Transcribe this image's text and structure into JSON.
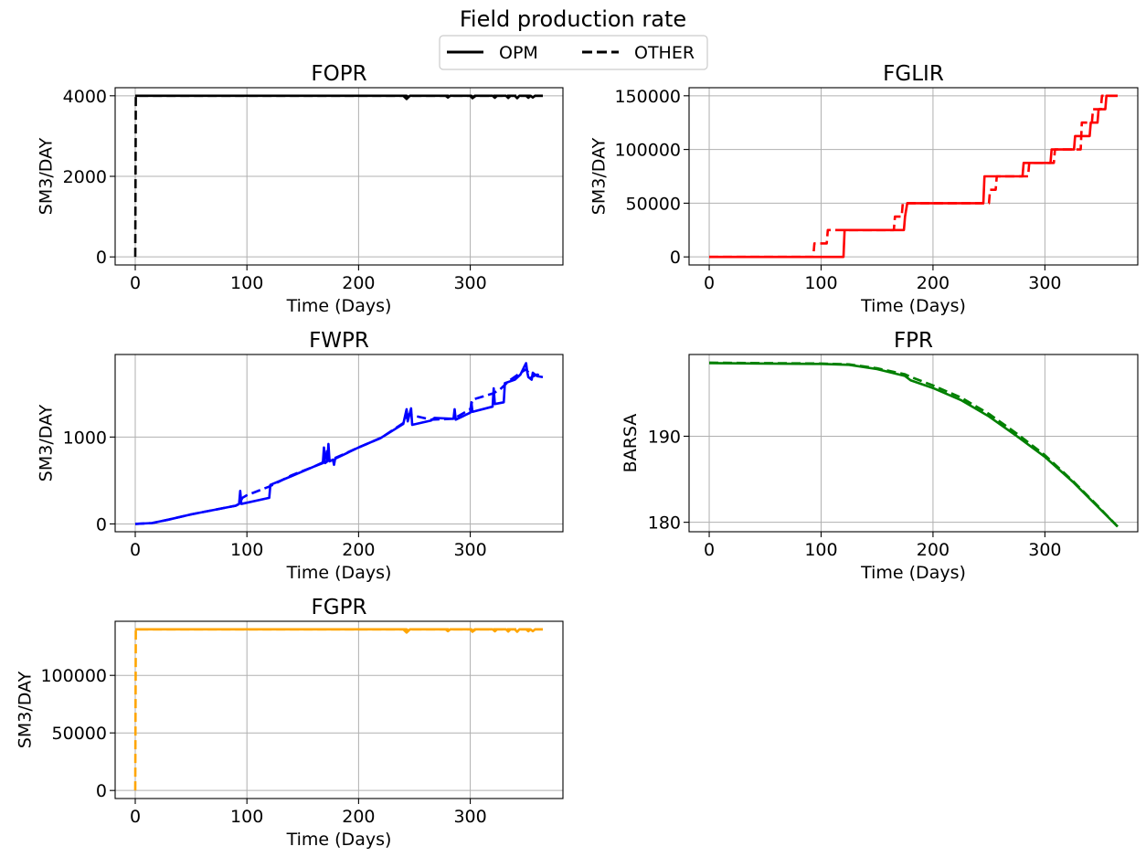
{
  "figure": {
    "title": "Field production rate",
    "legend": {
      "placement": "top-center",
      "entries": [
        {
          "label": "OPM",
          "style": "solid"
        },
        {
          "label": "OTHER",
          "style": "dashed"
        }
      ]
    }
  },
  "chart_data": [
    {
      "type": "line",
      "title": "FOPR",
      "xlabel": "Time (Days)",
      "ylabel": "SM3/DAY",
      "xlim": [
        -18,
        383
      ],
      "ylim": [
        -200,
        4200
      ],
      "xticks": [
        0,
        100,
        200,
        300
      ],
      "xtick_labels": [
        "0",
        "100",
        "200",
        "300"
      ],
      "yticks": [
        0,
        2000,
        4000
      ],
      "ytick_labels": [
        "0",
        "2000",
        "4000"
      ],
      "grid": true,
      "color": "#000000",
      "series": [
        {
          "name": "OPM",
          "style": "solid",
          "points": [
            [
              0,
              4000
            ],
            [
              240,
              4000
            ],
            [
              243,
              3920
            ],
            [
              246,
              4000
            ],
            [
              278,
              4000
            ],
            [
              280,
              3955
            ],
            [
              282,
              4000
            ],
            [
              300,
              4000
            ],
            [
              302,
              3940
            ],
            [
              304,
              4000
            ],
            [
              320,
              4000
            ],
            [
              322,
              3950
            ],
            [
              324,
              4000
            ],
            [
              332,
              4000
            ],
            [
              334,
              3945
            ],
            [
              336,
              4000
            ],
            [
              340,
              4000
            ],
            [
              342,
              3940
            ],
            [
              344,
              4000
            ],
            [
              350,
              4000
            ],
            [
              352,
              3950
            ],
            [
              354,
              4000
            ],
            [
              356,
              3955
            ],
            [
              358,
              4000
            ],
            [
              365,
              4000
            ]
          ]
        },
        {
          "name": "OTHER",
          "style": "dashed",
          "points": [
            [
              0,
              0
            ],
            [
              0.5,
              4000
            ],
            [
              243,
              4000
            ],
            [
              245,
              3960
            ],
            [
              247,
              4000
            ],
            [
              301,
              4000
            ],
            [
              303,
              3960
            ],
            [
              305,
              4000
            ],
            [
              365,
              4000
            ]
          ]
        }
      ]
    },
    {
      "type": "line",
      "title": "FGLIR",
      "xlabel": "Time (Days)",
      "ylabel": "SM3/DAY",
      "xlim": [
        -18,
        383
      ],
      "ylim": [
        -7500,
        157500
      ],
      "xticks": [
        0,
        100,
        200,
        300
      ],
      "xtick_labels": [
        "0",
        "100",
        "200",
        "300"
      ],
      "yticks": [
        0,
        50000,
        100000,
        150000
      ],
      "ytick_labels": [
        "0",
        "50000",
        "100000",
        "150000"
      ],
      "grid": true,
      "color": "#ff0000",
      "series": [
        {
          "name": "OPM",
          "style": "solid",
          "points": [
            [
              0,
              0
            ],
            [
              120,
              0
            ],
            [
              121,
              25000
            ],
            [
              174,
              25000
            ],
            [
              175,
              37500
            ],
            [
              177,
              50000
            ],
            [
              245,
              50000
            ],
            [
              246,
              75000
            ],
            [
              280,
              75000
            ],
            [
              281,
              87500
            ],
            [
              305,
              87500
            ],
            [
              306,
              100000
            ],
            [
              326,
              100000
            ],
            [
              327,
              112500
            ],
            [
              340,
              112500
            ],
            [
              341,
              125000
            ],
            [
              347,
              125000
            ],
            [
              348,
              137500
            ],
            [
              354,
              137500
            ],
            [
              355,
              150000
            ],
            [
              365,
              150000
            ]
          ]
        },
        {
          "name": "OTHER",
          "style": "dashed",
          "points": [
            [
              0,
              0
            ],
            [
              93,
              0
            ],
            [
              94,
              12500
            ],
            [
              105,
              12500
            ],
            [
              106,
              25000
            ],
            [
              165,
              25000
            ],
            [
              166,
              37500
            ],
            [
              172,
              37500
            ],
            [
              173,
              50000
            ],
            [
              250,
              50000
            ],
            [
              251,
              62500
            ],
            [
              256,
              62500
            ],
            [
              257,
              75000
            ],
            [
              285,
              75000
            ],
            [
              286,
              87500
            ],
            [
              308,
              87500
            ],
            [
              309,
              100000
            ],
            [
              332,
              100000
            ],
            [
              333,
              125000
            ],
            [
              342,
              125000
            ],
            [
              343,
              137500
            ],
            [
              350,
              137500
            ],
            [
              351,
              150000
            ],
            [
              365,
              150000
            ]
          ]
        }
      ]
    },
    {
      "type": "line",
      "title": "FWPR",
      "xlabel": "Time (Days)",
      "ylabel": "SM3/DAY",
      "xlim": [
        -18,
        383
      ],
      "ylim": [
        -90,
        1950
      ],
      "xticks": [
        0,
        100,
        200,
        300
      ],
      "xtick_labels": [
        "0",
        "100",
        "200",
        "300"
      ],
      "yticks": [
        0,
        1000
      ],
      "ytick_labels": [
        "0",
        "1000"
      ],
      "grid": true,
      "color": "#0000ff",
      "series": [
        {
          "name": "OPM",
          "style": "solid",
          "points": [
            [
              0,
              0
            ],
            [
              15,
              10
            ],
            [
              30,
              50
            ],
            [
              50,
              110
            ],
            [
              70,
              160
            ],
            [
              90,
              210
            ],
            [
              93,
              230
            ],
            [
              94,
              380
            ],
            [
              95,
              230
            ],
            [
              120,
              300
            ],
            [
              121,
              450
            ],
            [
              140,
              550
            ],
            [
              160,
              660
            ],
            [
              168,
              700
            ],
            [
              169,
              880
            ],
            [
              170,
              700
            ],
            [
              172,
              720
            ],
            [
              173,
              920
            ],
            [
              174,
              720
            ],
            [
              177,
              740
            ],
            [
              178,
              680
            ],
            [
              179,
              750
            ],
            [
              200,
              880
            ],
            [
              220,
              990
            ],
            [
              240,
              1150
            ],
            [
              243,
              1320
            ],
            [
              244,
              1180
            ],
            [
              247,
              1330
            ],
            [
              248,
              1140
            ],
            [
              265,
              1190
            ],
            [
              268,
              1220
            ],
            [
              285,
              1210
            ],
            [
              286,
              1320
            ],
            [
              287,
              1200
            ],
            [
              300,
              1280
            ],
            [
              301,
              1400
            ],
            [
              302,
              1290
            ],
            [
              320,
              1350
            ],
            [
              321,
              1560
            ],
            [
              322,
              1380
            ],
            [
              330,
              1400
            ],
            [
              331,
              1620
            ],
            [
              340,
              1660
            ],
            [
              345,
              1720
            ],
            [
              348,
              1800
            ],
            [
              350,
              1850
            ],
            [
              351,
              1750
            ],
            [
              352,
              1690
            ],
            [
              355,
              1660
            ],
            [
              356,
              1740
            ],
            [
              360,
              1700
            ],
            [
              365,
              1690
            ]
          ]
        },
        {
          "name": "OTHER",
          "style": "dashed",
          "points": [
            [
              0,
              0
            ],
            [
              15,
              10
            ],
            [
              30,
              50
            ],
            [
              50,
              110
            ],
            [
              70,
              160
            ],
            [
              90,
              210
            ],
            [
              93,
              230
            ],
            [
              96,
              300
            ],
            [
              100,
              330
            ],
            [
              120,
              430
            ],
            [
              140,
              560
            ],
            [
              160,
              660
            ],
            [
              170,
              720
            ],
            [
              172,
              860
            ],
            [
              174,
              730
            ],
            [
              200,
              880
            ],
            [
              220,
              990
            ],
            [
              240,
              1160
            ],
            [
              245,
              1260
            ],
            [
              248,
              1250
            ],
            [
              265,
              1200
            ],
            [
              285,
              1210
            ],
            [
              300,
              1320
            ],
            [
              302,
              1430
            ],
            [
              320,
              1500
            ],
            [
              326,
              1540
            ],
            [
              335,
              1650
            ],
            [
              345,
              1740
            ],
            [
              350,
              1780
            ],
            [
              355,
              1690
            ],
            [
              360,
              1720
            ],
            [
              365,
              1690
            ]
          ]
        }
      ]
    },
    {
      "type": "line",
      "title": "FPR",
      "xlabel": "Time (Days)",
      "ylabel": "BARSA",
      "xlim": [
        -18,
        383
      ],
      "ylim": [
        178.9,
        199.5
      ],
      "xticks": [
        0,
        100,
        200,
        300
      ],
      "xtick_labels": [
        "0",
        "100",
        "200",
        "300"
      ],
      "yticks": [
        180,
        190
      ],
      "ytick_labels": [
        "180",
        "190"
      ],
      "grid": true,
      "color": "#008000",
      "series": [
        {
          "name": "OPM",
          "style": "solid",
          "points": [
            [
              0,
              198.5
            ],
            [
              50,
              198.45
            ],
            [
              100,
              198.4
            ],
            [
              125,
              198.3
            ],
            [
              150,
              197.8
            ],
            [
              175,
              197.0
            ],
            [
              180,
              196.5
            ],
            [
              200,
              195.6
            ],
            [
              225,
              194.2
            ],
            [
              250,
              192.3
            ],
            [
              275,
              190.0
            ],
            [
              300,
              187.6
            ],
            [
              325,
              184.7
            ],
            [
              345,
              182.1
            ],
            [
              365,
              179.5
            ]
          ]
        },
        {
          "name": "OTHER",
          "style": "dashed",
          "points": [
            [
              0,
              198.55
            ],
            [
              50,
              198.5
            ],
            [
              100,
              198.45
            ],
            [
              125,
              198.35
            ],
            [
              150,
              197.9
            ],
            [
              175,
              197.2
            ],
            [
              180,
              196.9
            ],
            [
              200,
              195.9
            ],
            [
              225,
              194.5
            ],
            [
              250,
              192.6
            ],
            [
              275,
              190.3
            ],
            [
              300,
              187.8
            ],
            [
              325,
              184.8
            ],
            [
              345,
              182.2
            ],
            [
              365,
              179.5
            ]
          ]
        }
      ]
    },
    {
      "type": "line",
      "title": "FGPR",
      "xlabel": "Time (Days)",
      "ylabel": "SM3/DAY",
      "xlim": [
        -18,
        383
      ],
      "ylim": [
        -7000,
        147000
      ],
      "xticks": [
        0,
        100,
        200,
        300
      ],
      "xtick_labels": [
        "0",
        "100",
        "200",
        "300"
      ],
      "yticks": [
        0,
        50000,
        100000
      ],
      "ytick_labels": [
        "0",
        "50000",
        "100000"
      ],
      "grid": true,
      "color": "#ffa500",
      "series": [
        {
          "name": "OPM",
          "style": "solid",
          "points": [
            [
              0,
              140000
            ],
            [
              240,
              140000
            ],
            [
              243,
              137200
            ],
            [
              246,
              140000
            ],
            [
              278,
              140000
            ],
            [
              280,
              138400
            ],
            [
              282,
              140000
            ],
            [
              300,
              140000
            ],
            [
              302,
              137900
            ],
            [
              304,
              140000
            ],
            [
              320,
              140000
            ],
            [
              322,
              138300
            ],
            [
              324,
              140000
            ],
            [
              332,
              140000
            ],
            [
              334,
              138100
            ],
            [
              336,
              140000
            ],
            [
              340,
              140000
            ],
            [
              342,
              137900
            ],
            [
              344,
              140000
            ],
            [
              350,
              140000
            ],
            [
              352,
              138300
            ],
            [
              354,
              140000
            ],
            [
              356,
              138400
            ],
            [
              358,
              140000
            ],
            [
              365,
              140000
            ]
          ]
        },
        {
          "name": "OTHER",
          "style": "dashed",
          "points": [
            [
              0,
              0
            ],
            [
              0.5,
              140000
            ],
            [
              243,
              140000
            ],
            [
              245,
              138600
            ],
            [
              247,
              140000
            ],
            [
              301,
              140000
            ],
            [
              303,
              138600
            ],
            [
              305,
              140000
            ],
            [
              365,
              140000
            ]
          ]
        }
      ]
    }
  ]
}
